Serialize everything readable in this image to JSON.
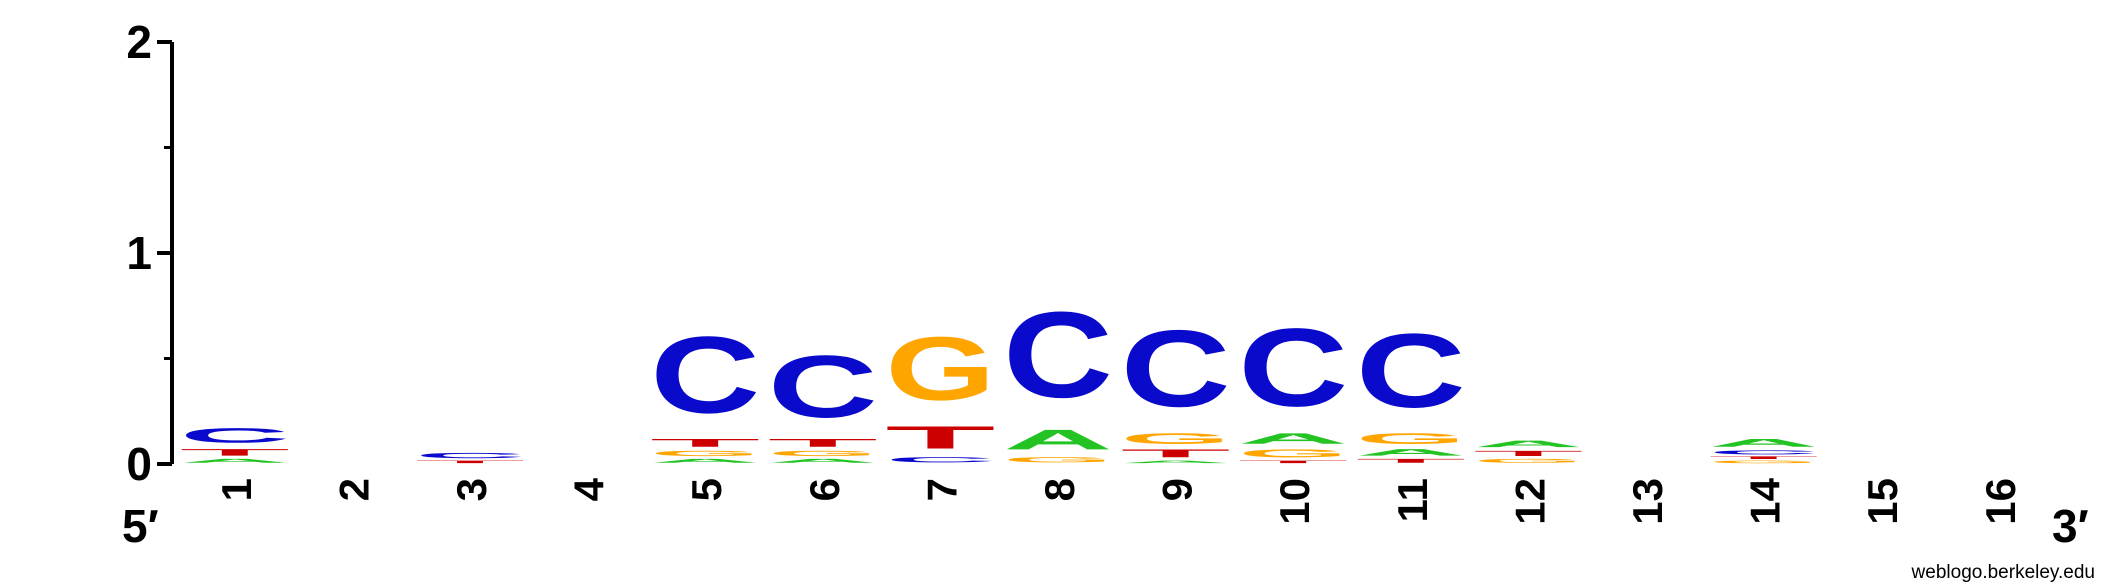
{
  "chart_data": {
    "type": "sequence-logo",
    "ylabel": "",
    "ylim": [
      0,
      2
    ],
    "y_ticks": [
      "0",
      "1",
      "2"
    ],
    "end_labels": {
      "left": "5′",
      "right": "3′"
    },
    "credit": "weblogo.berkeley.edu",
    "colors": {
      "A": "#22c322",
      "C": "#0a0acc",
      "G": "#ffa500",
      "T": "#cc0000"
    },
    "positions": [
      {
        "label": "1",
        "stack": [
          [
            "A",
            0.03
          ],
          [
            "T",
            0.05
          ],
          [
            "C",
            0.11
          ]
        ]
      },
      {
        "label": "2",
        "stack": []
      },
      {
        "label": "3",
        "stack": [
          [
            "T",
            0.02
          ],
          [
            "C",
            0.04
          ]
        ]
      },
      {
        "label": "4",
        "stack": []
      },
      {
        "label": "5",
        "stack": [
          [
            "A",
            0.03
          ],
          [
            "G",
            0.04
          ],
          [
            "T",
            0.06
          ],
          [
            "C",
            0.58
          ]
        ]
      },
      {
        "label": "6",
        "stack": [
          [
            "A",
            0.03
          ],
          [
            "G",
            0.04
          ],
          [
            "T",
            0.06
          ],
          [
            "C",
            0.47
          ]
        ]
      },
      {
        "label": "7",
        "stack": [
          [
            "C",
            0.04
          ],
          [
            "T",
            0.17
          ],
          [
            "G",
            0.48
          ]
        ]
      },
      {
        "label": "8",
        "stack": [
          [
            "G",
            0.04
          ],
          [
            "A",
            0.15
          ],
          [
            "C",
            0.65
          ]
        ]
      },
      {
        "label": "9",
        "stack": [
          [
            "A",
            0.02
          ],
          [
            "T",
            0.06
          ],
          [
            "G",
            0.08
          ],
          [
            "C",
            0.58
          ]
        ]
      },
      {
        "label": "10",
        "stack": [
          [
            "T",
            0.02
          ],
          [
            "G",
            0.06
          ],
          [
            "A",
            0.08
          ],
          [
            "C",
            0.59
          ]
        ]
      },
      {
        "label": "11",
        "stack": [
          [
            "T",
            0.03
          ],
          [
            "A",
            0.05
          ],
          [
            "G",
            0.08
          ],
          [
            "C",
            0.56
          ]
        ]
      },
      {
        "label": "12",
        "stack": [
          [
            "G",
            0.03
          ],
          [
            "T",
            0.04
          ],
          [
            "A",
            0.05
          ]
        ]
      },
      {
        "label": "13",
        "stack": []
      },
      {
        "label": "14",
        "stack": [
          [
            "G",
            0.02
          ],
          [
            "T",
            0.02
          ],
          [
            "C",
            0.03
          ],
          [
            "A",
            0.06
          ]
        ]
      },
      {
        "label": "15",
        "stack": []
      },
      {
        "label": "16",
        "stack": []
      }
    ]
  }
}
